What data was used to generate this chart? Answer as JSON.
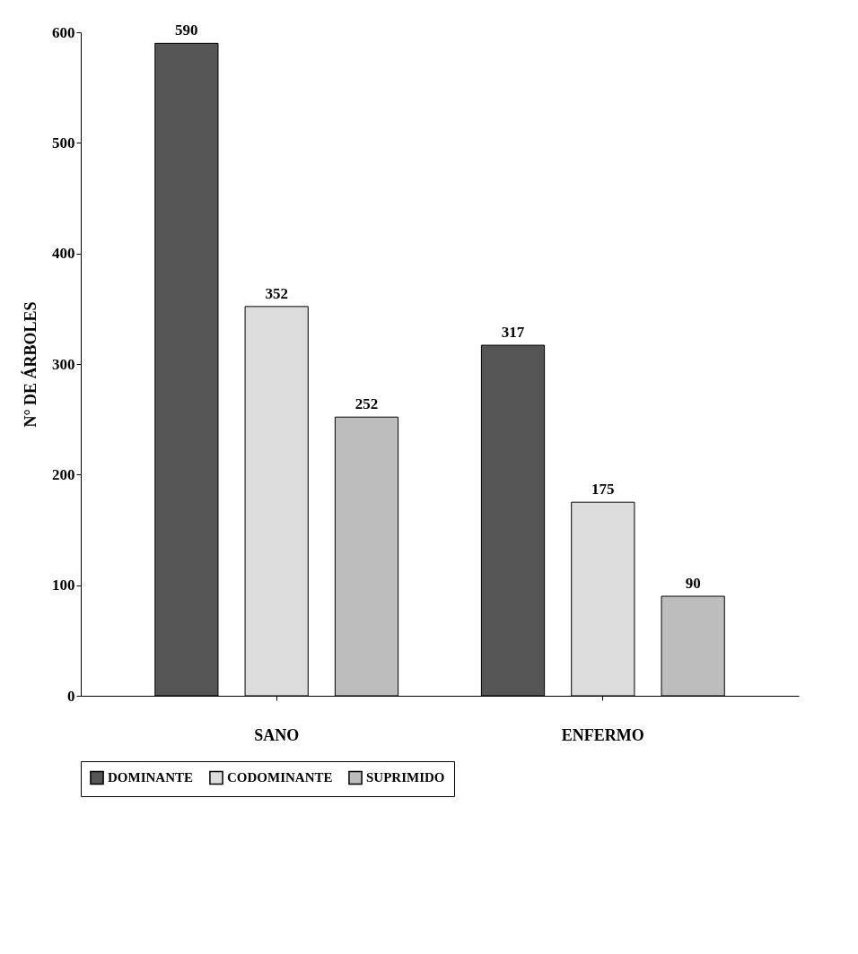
{
  "chart_data": {
    "type": "bar",
    "ylabel": "N° DE ÁRBOLES",
    "categories": [
      "SANO",
      "ENFERMO"
    ],
    "series": [
      {
        "name": "DOMINANTE",
        "color": "#555555",
        "values": [
          590,
          317
        ]
      },
      {
        "name": "CODOMINANTE",
        "color": "#dcdcdc",
        "values": [
          352,
          175
        ]
      },
      {
        "name": "SUPRIMIDO",
        "color": "#bdbdbd",
        "values": [
          252,
          90
        ]
      }
    ],
    "ylim": [
      0,
      600
    ],
    "yticks": [
      0,
      100,
      200,
      300,
      400,
      500,
      600
    ],
    "data_labels": true,
    "legend": "bottom",
    "grid": false
  }
}
